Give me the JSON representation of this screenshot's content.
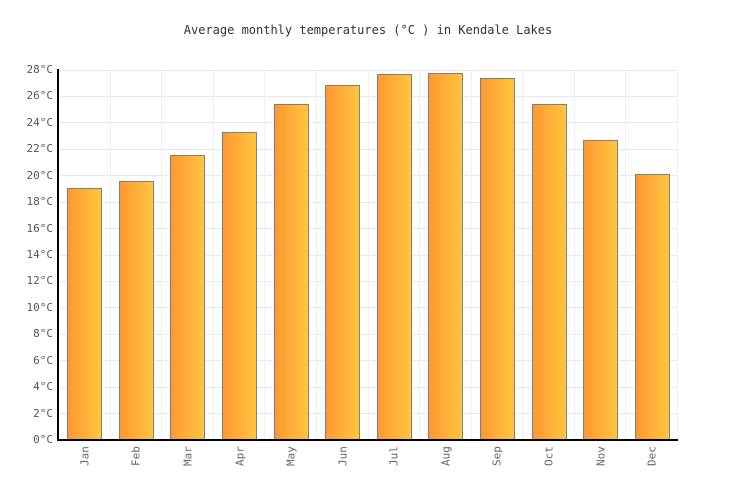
{
  "chart_data": {
    "type": "bar",
    "title": "Average monthly temperatures (°C ) in Kendale Lakes",
    "categories": [
      "Jan",
      "Feb",
      "Mar",
      "Apr",
      "May",
      "Jun",
      "Jul",
      "Aug",
      "Sep",
      "Oct",
      "Nov",
      "Dec"
    ],
    "values": [
      19.1,
      19.6,
      21.6,
      23.3,
      25.4,
      26.9,
      27.7,
      27.8,
      27.4,
      25.4,
      22.7,
      20.1
    ],
    "unit": "°C",
    "xlabel": "",
    "ylabel": "",
    "ylim": [
      0,
      28
    ],
    "ytick_step": 2,
    "ytick_labels": [
      "0°C",
      "2°C",
      "4°C",
      "6°C",
      "8°C",
      "10°C",
      "12°C",
      "14°C",
      "16°C",
      "18°C",
      "20°C",
      "22°C",
      "24°C",
      "26°C",
      "28°C"
    ],
    "grid": true,
    "legend": false
  },
  "colors": {
    "background": "#FFFFFF",
    "bar_gradient_left": "#FF9733",
    "bar_gradient_right": "#FFC63E",
    "bar_border": "#7F7F7F",
    "hgrid": "#E8E8E8",
    "vgrid": "#F0F0F0",
    "axis": "#000000",
    "title_text": "#333333",
    "ytick_text": "#555555",
    "xtick_text": "#666666"
  }
}
